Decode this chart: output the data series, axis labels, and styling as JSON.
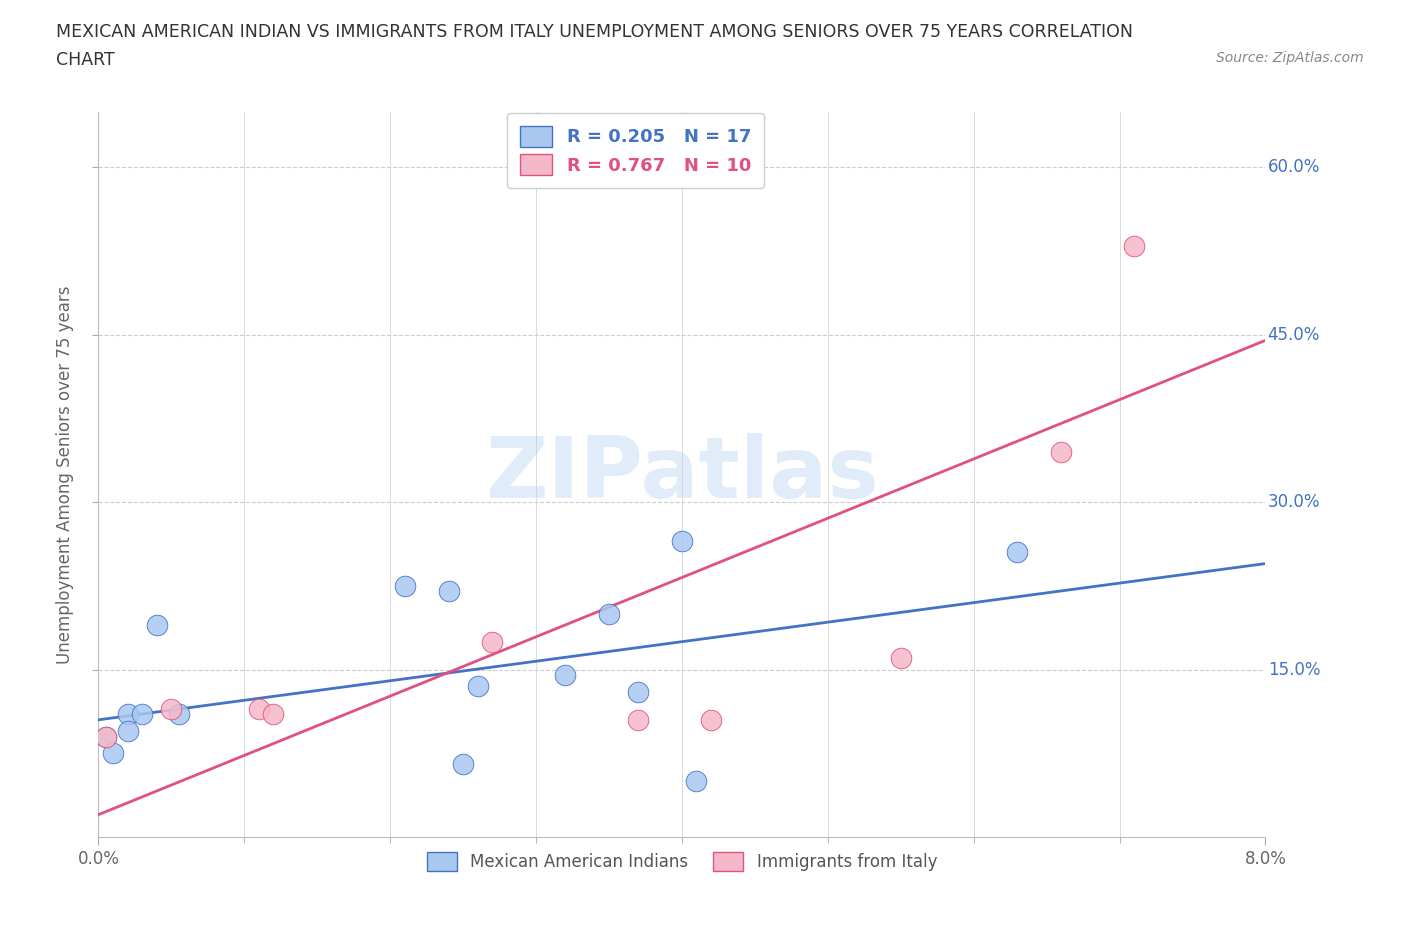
{
  "title_line1": "MEXICAN AMERICAN INDIAN VS IMMIGRANTS FROM ITALY UNEMPLOYMENT AMONG SENIORS OVER 75 YEARS CORRELATION",
  "title_line2": "CHART",
  "source": "Source: ZipAtlas.com",
  "ylabel": "Unemployment Among Seniors over 75 years",
  "xlim": [
    0.0,
    0.08
  ],
  "ylim": [
    0.0,
    0.65
  ],
  "blue_scatter_x": [
    0.0005,
    0.001,
    0.002,
    0.002,
    0.003,
    0.004,
    0.0055,
    0.021,
    0.024,
    0.025,
    0.026,
    0.032,
    0.035,
    0.037,
    0.04,
    0.041,
    0.063
  ],
  "blue_scatter_y": [
    0.09,
    0.075,
    0.11,
    0.095,
    0.11,
    0.19,
    0.11,
    0.225,
    0.22,
    0.065,
    0.135,
    0.145,
    0.2,
    0.13,
    0.265,
    0.05,
    0.255
  ],
  "pink_scatter_x": [
    0.0005,
    0.005,
    0.011,
    0.012,
    0.027,
    0.037,
    0.042,
    0.055,
    0.066,
    0.071
  ],
  "pink_scatter_y": [
    0.09,
    0.115,
    0.115,
    0.11,
    0.175,
    0.105,
    0.105,
    0.16,
    0.345,
    0.53
  ],
  "blue_line_x": [
    0.0,
    0.08
  ],
  "blue_line_y": [
    0.105,
    0.245
  ],
  "pink_line_x": [
    0.0,
    0.08
  ],
  "pink_line_y": [
    0.02,
    0.445
  ],
  "blue_color": "#a8c8f0",
  "blue_edge_color": "#4472C4",
  "pink_color": "#f5b8c8",
  "pink_edge_color": "#e05080",
  "legend_r_blue": "R = 0.205",
  "legend_n_blue": "N = 17",
  "legend_r_pink": "R = 0.767",
  "legend_n_pink": "N = 10",
  "watermark_text": "ZIPatlas",
  "background_color": "#ffffff",
  "grid_color": "#cccccc",
  "ytick_positions": [
    0.15,
    0.3,
    0.45,
    0.6
  ],
  "ytick_labels": [
    "15.0%",
    "30.0%",
    "45.0%",
    "60.0%"
  ],
  "xtick_positions": [
    0.0,
    0.08
  ],
  "xtick_labels": [
    "0.0%",
    "8.0%"
  ],
  "xtick_minor_positions": [
    0.01,
    0.02,
    0.03,
    0.04,
    0.05,
    0.06,
    0.07
  ]
}
